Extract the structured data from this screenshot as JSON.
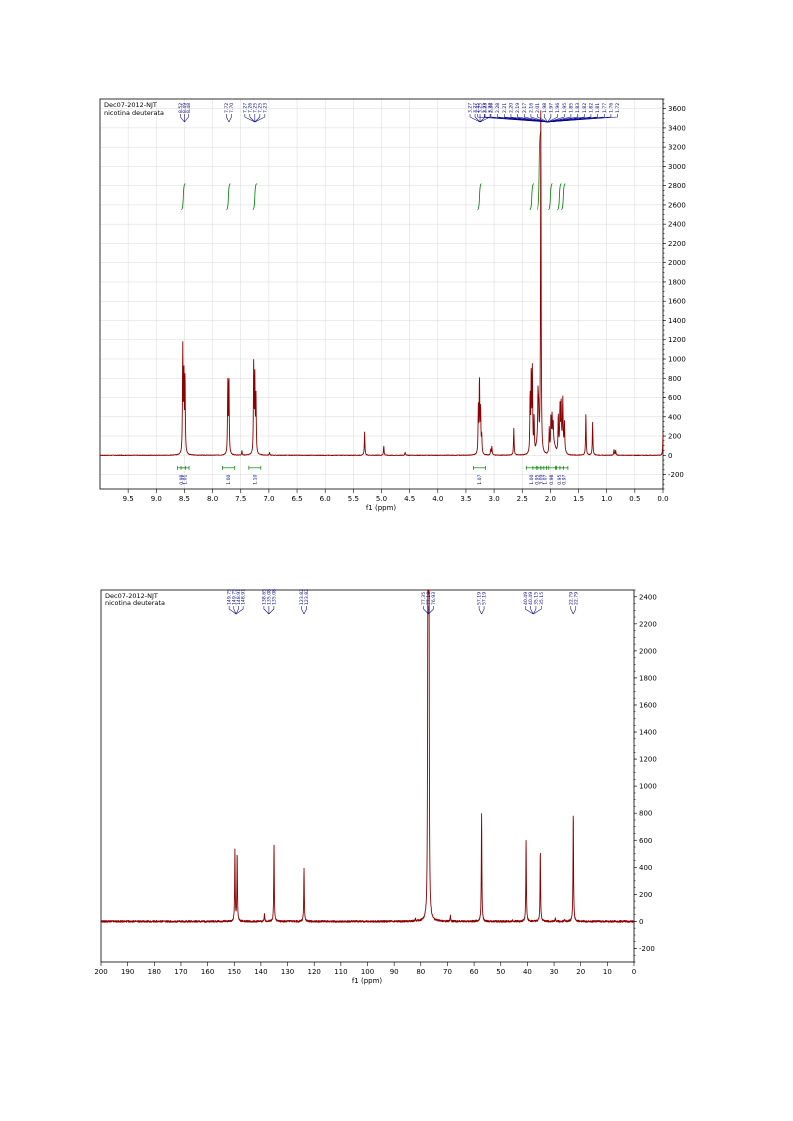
{
  "chart_data": [
    {
      "type": "line",
      "title": "Dec07-2012-NJT",
      "subtitle": "nicotina deuterata",
      "xlabel": "f1 (ppm)",
      "ylabel": "",
      "xlim": [
        10.0,
        0.0
      ],
      "ylim": [
        -350,
        3700
      ],
      "grid": true,
      "x_ticks": [
        "9.5",
        "9.0",
        "8.5",
        "8.0",
        "7.5",
        "7.0",
        "6.5",
        "6.0",
        "5.5",
        "5.0",
        "4.5",
        "4.0",
        "3.5",
        "3.0",
        "2.5",
        "2.0",
        "1.5",
        "1.0",
        "0.5",
        "0.0"
      ],
      "y_ticks": [
        "-200",
        "0",
        "200",
        "400",
        "600",
        "800",
        "1000",
        "1200",
        "1400",
        "1600",
        "1800",
        "2000",
        "2200",
        "2400",
        "2600",
        "2800",
        "3000",
        "3200",
        "3400",
        "3600"
      ],
      "peak_labels": [
        "8.52",
        "8.49",
        "8.48",
        "7.72",
        "7.70",
        "7.27",
        "7.26",
        "7.25",
        "7.25",
        "7.23",
        "3.27",
        "3.27",
        "3.25",
        "3.23",
        "3.22",
        "2.35",
        "2.33",
        "2.30",
        "2.28",
        "2.21",
        "2.20",
        "2.19",
        "2.17",
        "2.16",
        "2.01",
        "1.98",
        "1.97",
        "1.96",
        "1.95",
        "1.85",
        "1.83",
        "1.82",
        "1.82",
        "1.81",
        "1.77",
        "1.76",
        "1.72"
      ],
      "integrals": [
        "0.98",
        "1.01",
        "1.00",
        "1.10",
        "1.07",
        "1.00",
        "0.95",
        "3.09",
        "1.07",
        "0.98",
        "0.95",
        "0.97"
      ],
      "peaks": [
        {
          "ppm": 8.53,
          "height": 1110
        },
        {
          "ppm": 8.51,
          "height": 830
        },
        {
          "ppm": 8.49,
          "height": 800
        },
        {
          "ppm": 7.73,
          "height": 740
        },
        {
          "ppm": 7.71,
          "height": 800
        },
        {
          "ppm": 7.27,
          "height": 940
        },
        {
          "ppm": 7.25,
          "height": 760
        },
        {
          "ppm": 7.23,
          "height": 600
        },
        {
          "ppm": 7.48,
          "height": 45
        },
        {
          "ppm": 6.99,
          "height": 30
        },
        {
          "ppm": 5.3,
          "height": 240
        },
        {
          "ppm": 4.96,
          "height": 100
        },
        {
          "ppm": 4.58,
          "height": 35
        },
        {
          "ppm": 3.28,
          "height": 470
        },
        {
          "ppm": 3.26,
          "height": 780
        },
        {
          "ppm": 3.24,
          "height": 460
        },
        {
          "ppm": 3.22,
          "height": 180
        },
        {
          "ppm": 3.06,
          "height": 60
        },
        {
          "ppm": 3.04,
          "height": 90
        },
        {
          "ppm": 2.65,
          "height": 280
        },
        {
          "ppm": 2.36,
          "height": 600
        },
        {
          "ppm": 2.34,
          "height": 830
        },
        {
          "ppm": 2.32,
          "height": 860
        },
        {
          "ppm": 2.29,
          "height": 380
        },
        {
          "ppm": 2.22,
          "height": 480
        },
        {
          "ppm": 2.21,
          "height": 300
        },
        {
          "ppm": 2.17,
          "height": 3600
        },
        {
          "ppm": 2.02,
          "height": 260
        },
        {
          "ppm": 1.99,
          "height": 340
        },
        {
          "ppm": 1.97,
          "height": 300
        },
        {
          "ppm": 1.95,
          "height": 200
        },
        {
          "ppm": 1.86,
          "height": 380
        },
        {
          "ppm": 1.83,
          "height": 420
        },
        {
          "ppm": 1.81,
          "height": 460
        },
        {
          "ppm": 1.78,
          "height": 500
        },
        {
          "ppm": 1.75,
          "height": 280
        },
        {
          "ppm": 1.37,
          "height": 430
        },
        {
          "ppm": 1.25,
          "height": 340
        },
        {
          "ppm": 0.87,
          "height": 60
        },
        {
          "ppm": 0.84,
          "height": 50
        },
        {
          "ppm": 0.0,
          "height": 210
        }
      ]
    },
    {
      "type": "line",
      "title": "Dec07-2012-NJT",
      "subtitle": "nicotina deuterata",
      "xlabel": "f1 (ppm)",
      "ylabel": "",
      "xlim": [
        200,
        0
      ],
      "ylim": [
        -300,
        2450
      ],
      "grid": false,
      "x_ticks": [
        "200",
        "190",
        "180",
        "170",
        "160",
        "150",
        "140",
        "130",
        "120",
        "110",
        "100",
        "90",
        "80",
        "70",
        "60",
        "50",
        "40",
        "30",
        "20",
        "10",
        "0"
      ],
      "y_ticks": [
        "-200",
        "0",
        "200",
        "400",
        "600",
        "800",
        "1000",
        "1200",
        "1400",
        "1600",
        "1800",
        "2000",
        "2200",
        "2400"
      ],
      "peak_labels": [
        "149.75",
        "149.75",
        "148.91",
        "148.91",
        "138.65",
        "135.08",
        "135.08",
        "123.82",
        "123.82",
        "77.35",
        "77.10",
        "76.93",
        "57.19",
        "57.19",
        "40.49",
        "40.49",
        "35.15",
        "35.15",
        "22.79",
        "22.79"
      ],
      "peaks": [
        {
          "ppm": 149.75,
          "height": 520
        },
        {
          "ppm": 148.91,
          "height": 500
        },
        {
          "ppm": 138.65,
          "height": 60
        },
        {
          "ppm": 135.08,
          "height": 570
        },
        {
          "ppm": 123.82,
          "height": 390
        },
        {
          "ppm": 77.35,
          "height": 2200
        },
        {
          "ppm": 77.1,
          "height": 2200
        },
        {
          "ppm": 76.93,
          "height": 2200
        },
        {
          "ppm": 82.0,
          "height": 20
        },
        {
          "ppm": 68.9,
          "height": 40
        },
        {
          "ppm": 57.19,
          "height": 800
        },
        {
          "ppm": 40.49,
          "height": 600
        },
        {
          "ppm": 35.15,
          "height": 530
        },
        {
          "ppm": 22.79,
          "height": 810
        },
        {
          "ppm": 29.5,
          "height": 30
        },
        {
          "ppm": 26.0,
          "height": 20
        },
        {
          "ppm": 45.6,
          "height": 15
        }
      ]
    }
  ],
  "colors": {
    "spectrum": "#8b0000",
    "integral": "#008000",
    "peak_label": "#00008b"
  }
}
